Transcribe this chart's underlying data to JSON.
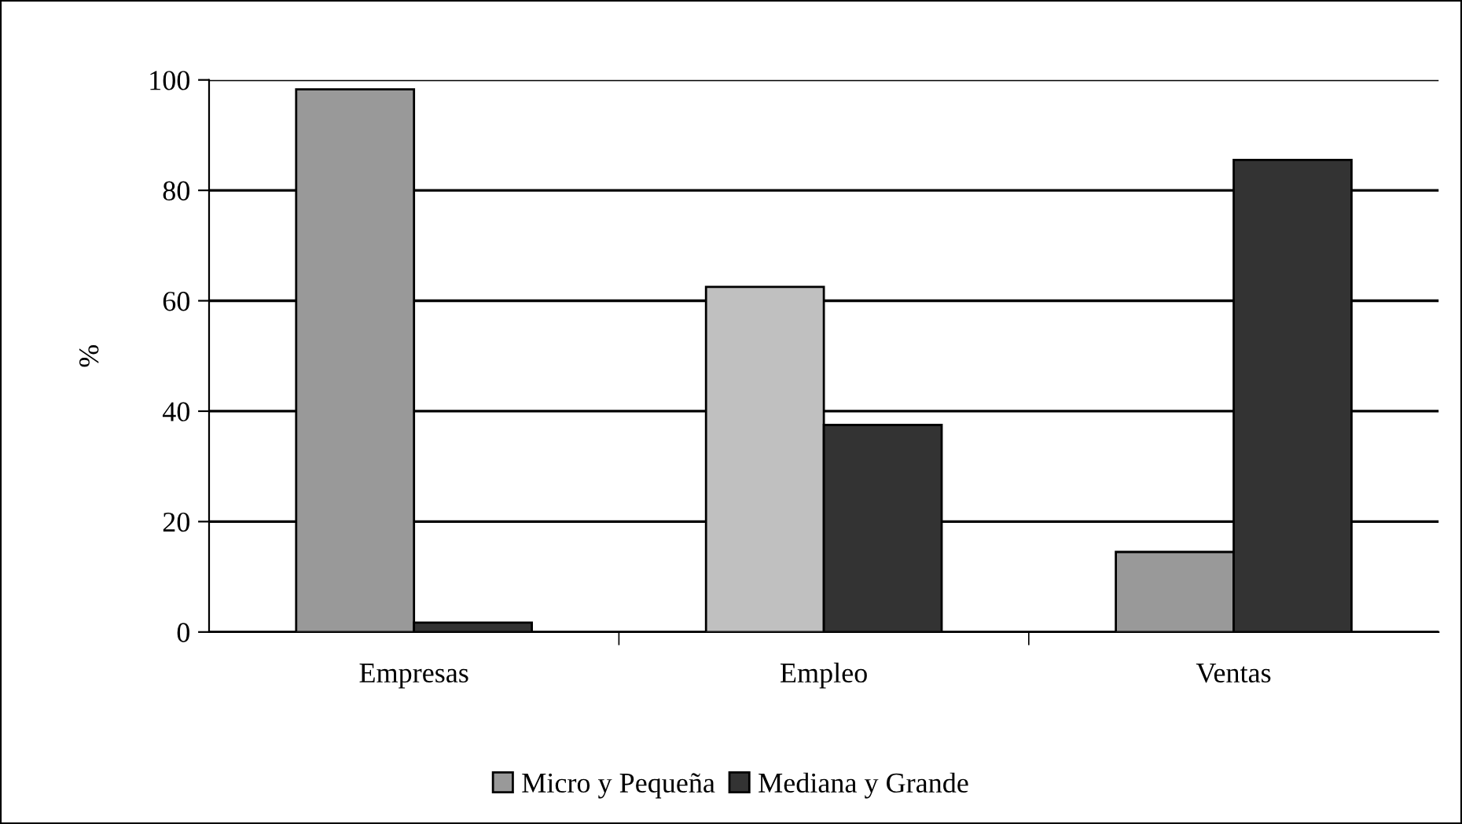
{
  "chart_data": {
    "type": "bar",
    "ylabel": "%",
    "categories": [
      "Empresas",
      "Empleo",
      "Ventas"
    ],
    "series": [
      {
        "name": "Micro y Pequeña",
        "color": "#999999",
        "colors": [
          "#999999",
          "#c0c0c0",
          "#999999"
        ],
        "values": [
          98.3,
          62.5,
          14.5
        ]
      },
      {
        "name": "Mediana y Grande",
        "color": "#333333",
        "values": [
          1.7,
          37.5,
          85.5
        ]
      }
    ],
    "ylim": [
      0,
      100
    ],
    "yticks": [
      0,
      20,
      40,
      60,
      80,
      100
    ],
    "grid": "y",
    "legend": "bottom"
  }
}
